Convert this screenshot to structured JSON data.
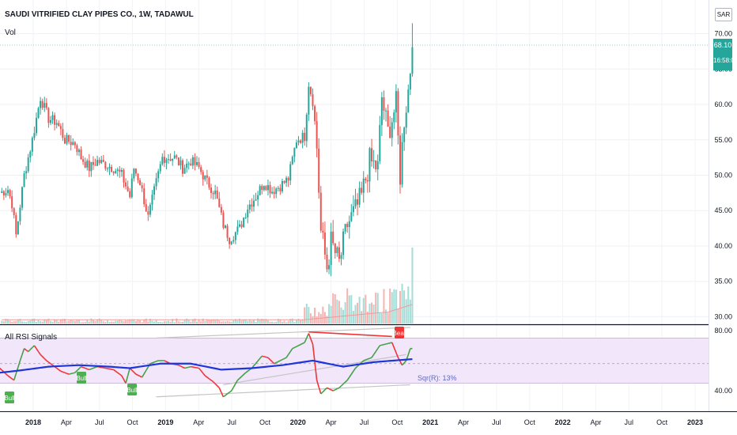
{
  "header": {
    "title": "SAUDI VITRIFIED CLAY PIPES CO., 1W, TADAWUL",
    "volume_label": "Vol",
    "currency": "SAR"
  },
  "last_price": {
    "value": "68.10",
    "countdown": "16:58:07",
    "color": "#26a69a"
  },
  "rsi_panel": {
    "title": "All RSI Signals",
    "annotation": "Sqr(R): 13%",
    "ticks": [
      "80.00",
      "40.00"
    ]
  },
  "signals": {
    "bull": "Bull",
    "bear": "Bear"
  },
  "colors": {
    "up": "#26a69a",
    "down": "#ef5350",
    "rsi_up": "#43a047",
    "rsi_down": "#ef3535",
    "rsi_ma": "#1e36d9",
    "rsi_band": "#f2e6fb"
  },
  "chart_data": {
    "type": "candlestick",
    "title": "SAUDI VITRIFIED CLAY PIPES CO., 1W, TADAWUL",
    "price_axis": {
      "ticks": [
        "70.00",
        "65.00",
        "60.00",
        "55.00",
        "50.00",
        "45.00",
        "40.00",
        "35.00",
        "30.00"
      ],
      "range": [
        29.6,
        70.4
      ]
    },
    "time_axis": {
      "ticks": [
        "2018",
        "Apr",
        "Jul",
        "Oct",
        "2019",
        "Apr",
        "Jul",
        "Oct",
        "2020",
        "Apr",
        "Jul",
        "Oct",
        "2021",
        "Apr",
        "Jul",
        "Oct",
        "2022",
        "Apr",
        "Jul",
        "Oct",
        "2023"
      ]
    },
    "anchors": [
      [
        -4,
        47.5
      ],
      [
        0,
        48
      ],
      [
        2,
        46
      ],
      [
        4,
        41.5
      ],
      [
        8,
        50
      ],
      [
        12,
        55
      ],
      [
        16,
        61
      ],
      [
        20,
        58
      ],
      [
        24,
        57.5
      ],
      [
        28,
        55
      ],
      [
        33,
        54.5
      ],
      [
        36,
        52.5
      ],
      [
        40,
        51
      ],
      [
        44,
        52
      ],
      [
        48,
        51.5
      ],
      [
        52,
        51
      ],
      [
        56,
        50
      ],
      [
        60,
        47
      ],
      [
        62,
        51
      ],
      [
        65,
        49
      ],
      [
        69,
        44
      ],
      [
        73,
        49
      ],
      [
        76,
        52.5
      ],
      [
        82,
        52.5
      ],
      [
        86,
        51
      ],
      [
        90,
        52
      ],
      [
        94,
        51
      ],
      [
        98,
        49
      ],
      [
        102,
        47.5
      ],
      [
        106,
        43
      ],
      [
        109,
        41
      ],
      [
        114,
        42.5
      ],
      [
        118,
        45.5
      ],
      [
        122,
        47
      ],
      [
        126,
        49
      ],
      [
        130,
        47.8
      ],
      [
        134,
        48.5
      ],
      [
        138,
        49.5
      ],
      [
        142,
        55
      ],
      [
        146,
        55.5
      ],
      [
        148,
        63
      ],
      [
        150,
        60.5
      ],
      [
        152,
        54
      ],
      [
        154,
        42
      ],
      [
        157,
        37
      ],
      [
        159,
        40.5
      ],
      [
        163,
        37.5
      ],
      [
        167,
        43
      ],
      [
        171,
        45
      ],
      [
        174,
        47
      ],
      [
        178,
        52
      ],
      [
        182,
        51
      ],
      [
        184,
        61
      ],
      [
        187,
        56
      ],
      [
        191,
        60
      ],
      [
        193,
        50
      ],
      [
        195,
        58
      ],
      [
        197,
        62
      ],
      [
        199,
        68.1
      ]
    ],
    "volume_max_ratio": 1.0,
    "rsi_anchors": [
      [
        -4,
        55
      ],
      [
        0,
        50
      ],
      [
        3,
        47
      ],
      [
        6,
        60
      ],
      [
        8,
        68
      ],
      [
        10,
        66
      ],
      [
        13,
        70
      ],
      [
        16,
        64
      ],
      [
        19,
        60
      ],
      [
        22,
        57
      ],
      [
        26,
        53
      ],
      [
        30,
        51
      ],
      [
        33,
        52
      ],
      [
        36,
        56
      ],
      [
        40,
        54
      ],
      [
        44,
        56
      ],
      [
        48,
        55
      ],
      [
        52,
        54
      ],
      [
        56,
        50
      ],
      [
        58,
        45
      ],
      [
        60,
        55
      ],
      [
        63,
        51
      ],
      [
        66,
        49
      ],
      [
        70,
        58
      ],
      [
        74,
        60
      ],
      [
        77,
        60
      ],
      [
        80,
        58
      ],
      [
        84,
        57
      ],
      [
        87,
        55
      ],
      [
        90,
        56
      ],
      [
        94,
        55
      ],
      [
        97,
        50
      ],
      [
        101,
        46
      ],
      [
        104,
        42
      ],
      [
        106,
        36
      ],
      [
        110,
        40
      ],
      [
        113,
        47
      ],
      [
        117,
        52
      ],
      [
        120,
        55
      ],
      [
        125,
        63
      ],
      [
        128,
        62
      ],
      [
        131,
        58
      ],
      [
        134,
        60
      ],
      [
        137,
        62
      ],
      [
        140,
        68
      ],
      [
        143,
        70
      ],
      [
        146,
        72
      ],
      [
        148,
        78
      ],
      [
        150,
        71
      ],
      [
        152,
        47
      ],
      [
        154,
        38
      ],
      [
        157,
        42
      ],
      [
        160,
        40
      ],
      [
        163,
        42
      ],
      [
        167,
        47
      ],
      [
        171,
        55
      ],
      [
        175,
        60
      ],
      [
        179,
        62
      ],
      [
        183,
        70
      ],
      [
        186,
        71
      ],
      [
        189,
        72
      ],
      [
        192,
        62
      ],
      [
        194,
        57
      ],
      [
        196,
        60
      ],
      [
        198,
        68
      ]
    ],
    "rsi_ma_anchors": [
      [
        -4,
        52
      ],
      [
        6,
        53.5
      ],
      [
        20,
        56
      ],
      [
        35,
        57
      ],
      [
        50,
        56
      ],
      [
        60,
        55
      ],
      [
        75,
        58
      ],
      [
        90,
        58
      ],
      [
        105,
        54
      ],
      [
        120,
        55
      ],
      [
        135,
        57
      ],
      [
        150,
        60
      ],
      [
        165,
        56
      ],
      [
        180,
        59
      ],
      [
        199,
        61
      ]
    ],
    "rsi_band": [
      45,
      75
    ],
    "rsi_midline": 58,
    "rsi_ticks": [
      80,
      40
    ],
    "rsi_range": [
      28,
      82
    ]
  }
}
